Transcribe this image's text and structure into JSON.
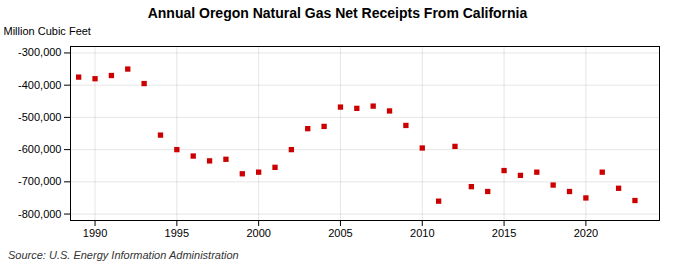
{
  "chart_data": {
    "type": "scatter",
    "title": "Annual Oregon Natural Gas Net Receipts From California",
    "ylabel": "Million Cubic Feet",
    "caption": "Source: U.S. Energy Information Administration",
    "x": [
      1989,
      1990,
      1991,
      1992,
      1993,
      1994,
      1995,
      1996,
      1997,
      1998,
      1999,
      2000,
      2001,
      2002,
      2003,
      2004,
      2005,
      2006,
      2007,
      2008,
      2009,
      2010,
      2011,
      2012,
      2013,
      2014,
      2015,
      2016,
      2017,
      2018,
      2019,
      2020,
      2021,
      2022,
      2023
    ],
    "values": [
      -375000,
      -380000,
      -370000,
      -350000,
      -395000,
      -555000,
      -600000,
      -620000,
      -635000,
      -630000,
      -675000,
      -670000,
      -655000,
      -600000,
      -535000,
      -528000,
      -468000,
      -472000,
      -465000,
      -480000,
      -525000,
      -595000,
      -760000,
      -590000,
      -715000,
      -730000,
      -665000,
      -680000,
      -670000,
      -710000,
      -730000,
      -750000,
      -670000,
      -720000,
      -758000
    ],
    "color": "#cc0000",
    "marker": "square",
    "xlim": [
      1988.5,
      2024.5
    ],
    "xticks": [
      1990,
      1995,
      2000,
      2005,
      2010,
      2015,
      2020
    ],
    "ylim": [
      -820000,
      -280000
    ],
    "yticks": [
      {
        "value": -800000,
        "label": "-800,000"
      },
      {
        "value": -700000,
        "label": "-700,000"
      },
      {
        "value": -600000,
        "label": "-600,000"
      },
      {
        "value": -500000,
        "label": "-500,000"
      },
      {
        "value": -400000,
        "label": "-400,000"
      },
      {
        "value": -300000,
        "label": "-300,000"
      }
    ],
    "grid": true
  }
}
